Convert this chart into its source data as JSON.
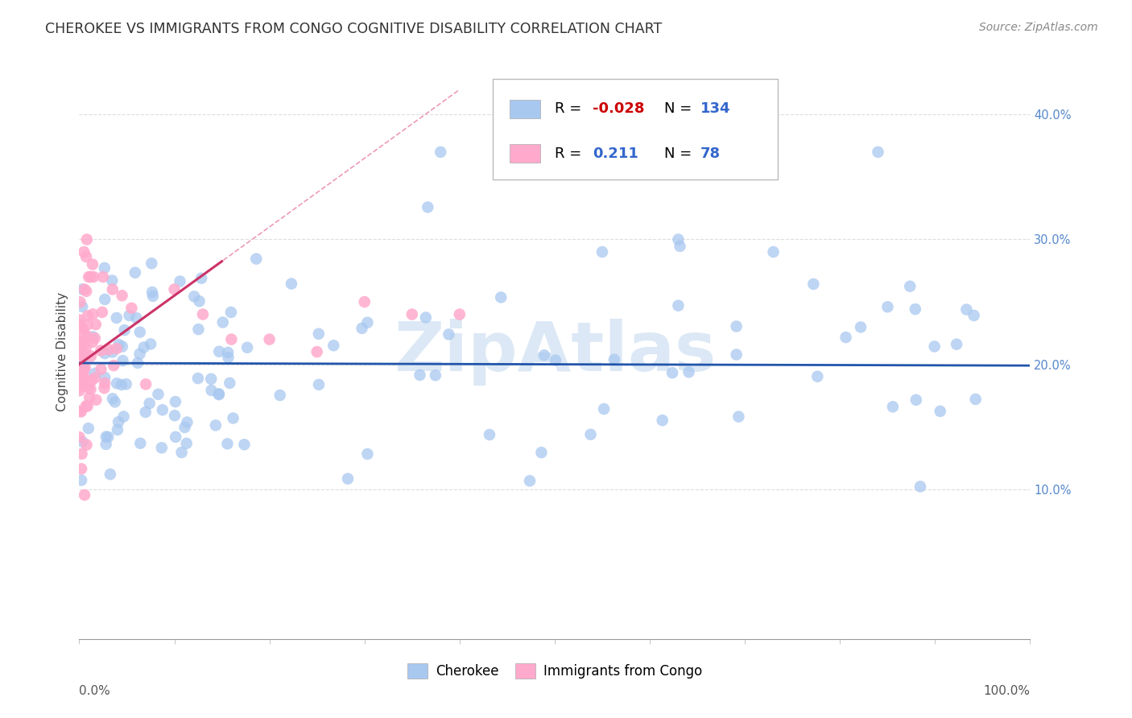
{
  "title": "CHEROKEE VS IMMIGRANTS FROM CONGO COGNITIVE DISABILITY CORRELATION CHART",
  "source_text": "Source: ZipAtlas.com",
  "ylabel": "Cognitive Disability",
  "ylim": [
    -0.02,
    0.44
  ],
  "xlim": [
    0.0,
    1.0
  ],
  "ytick_vals": [
    0.1,
    0.2,
    0.3,
    0.4
  ],
  "ytick_labels": [
    "10.0%",
    "20.0%",
    "30.0%",
    "40.0%"
  ],
  "blue_color": "#a8c8f0",
  "pink_color": "#ffaacc",
  "blue_line_color": "#2255aa",
  "pink_line_color": "#cc3366",
  "pink_dash_color": "#ee99bb",
  "watermark_color": "#dce8f5",
  "background_color": "#ffffff",
  "grid_color": "#dddddd",
  "title_color": "#333333",
  "source_color": "#888888",
  "tick_label_color": "#5588cc",
  "xlabel_color": "#555555",
  "ylabel_color": "#444444",
  "blue_intercept": 0.201,
  "blue_slope": -0.002,
  "pink_intercept": 0.2,
  "pink_slope": 0.55,
  "scatter_marker_size": 110
}
